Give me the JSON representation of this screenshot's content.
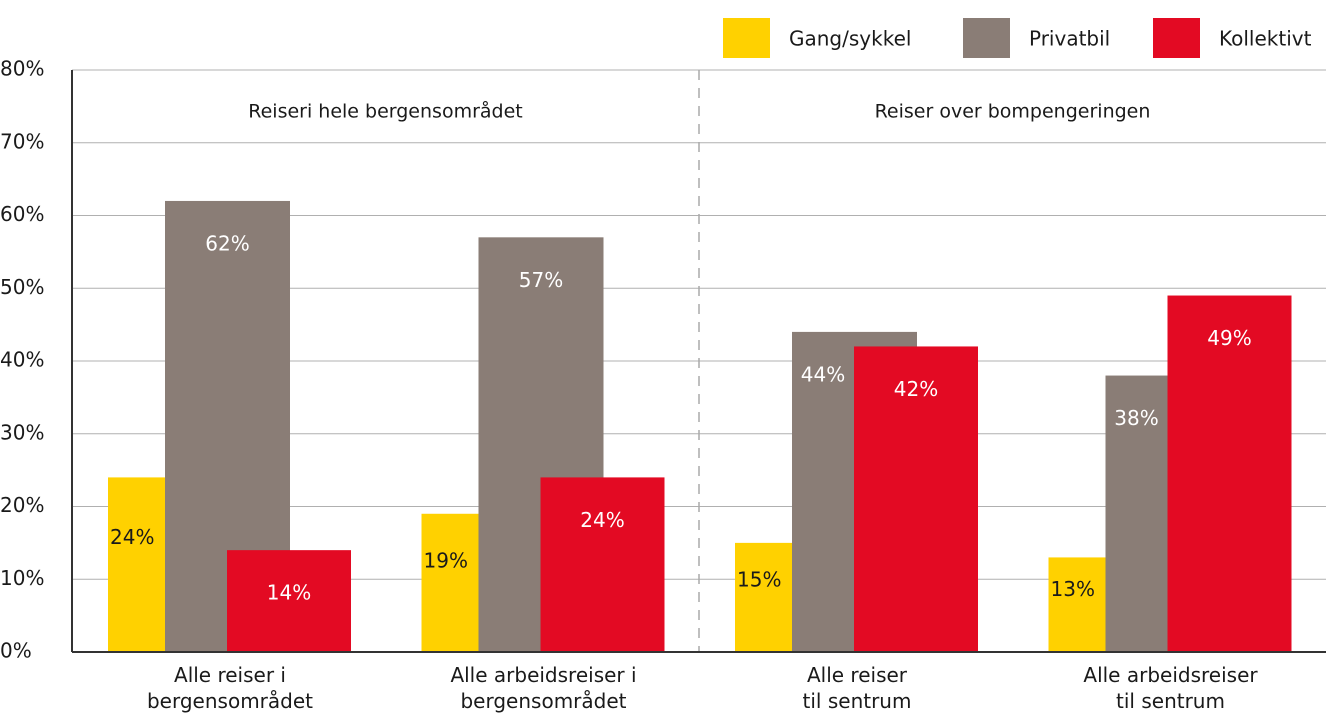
{
  "chart_data": {
    "type": "bar",
    "categories": [
      [
        "Alle reiser i",
        "bergensområdet"
      ],
      [
        "Alle arbeidsreiser i",
        "bergensområdet"
      ],
      [
        "Alle reiser",
        "til sentrum"
      ],
      [
        "Alle arbeidsreiser",
        "til sentrum"
      ]
    ],
    "series": [
      {
        "name": "Gang/sykkel",
        "color": "#ffd100",
        "values": [
          24,
          19,
          15,
          13
        ],
        "value_labels": [
          "24%",
          "19%",
          "15%",
          "13%"
        ]
      },
      {
        "name": "Privatbil",
        "color": "#8a7d76",
        "values": [
          62,
          57,
          44,
          38
        ],
        "value_labels": [
          "62%",
          "57%",
          "44%",
          "38%"
        ]
      },
      {
        "name": "Kollektivt",
        "color": "#e30a23",
        "values": [
          14,
          24,
          42,
          49
        ],
        "value_labels": [
          "14%",
          "24%",
          "42%",
          "49%"
        ]
      }
    ],
    "annotations": [
      "Reiseri hele bergensområdet",
      "Reiser over bompengeringen"
    ],
    "ylim": [
      0,
      80
    ],
    "yticks": [
      {
        "value": 0,
        "label": "0%"
      },
      {
        "value": 10,
        "label": "10%"
      },
      {
        "value": 20,
        "label": "20%"
      },
      {
        "value": 30,
        "label": "30%"
      },
      {
        "value": 40,
        "label": "40%"
      },
      {
        "value": 50,
        "label": "50%"
      },
      {
        "value": 60,
        "label": "60%"
      },
      {
        "value": 70,
        "label": "70%"
      },
      {
        "value": 80,
        "label": "80%"
      }
    ],
    "grid": true,
    "legend": "top-right"
  }
}
